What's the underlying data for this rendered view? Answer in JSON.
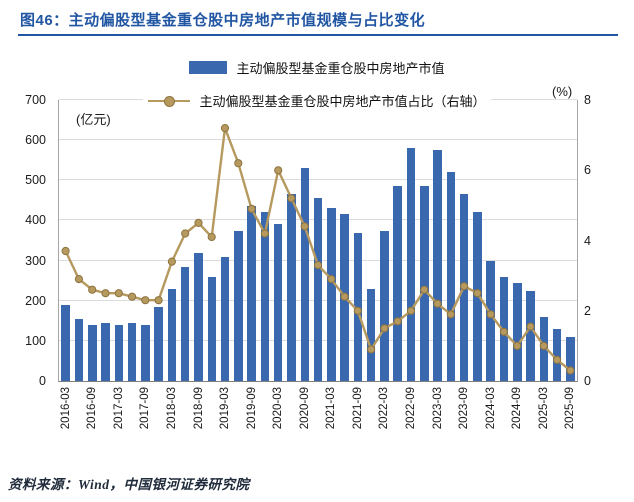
{
  "header": {
    "title": "图46：主动偏股型基金重仓股中房地产市值规模与占比变化",
    "accent_color": "#2156A3"
  },
  "legend": [
    {
      "label": "主动偏股型基金重仓股中房地产市值",
      "type": "bar",
      "color": "#3A68AE"
    },
    {
      "label": "主动偏股型基金重仓股中房地产市值占比（右轴）",
      "type": "line",
      "color": "#B5995E"
    }
  ],
  "chart_data": {
    "type": "bar+line",
    "categories": [
      "2016-03",
      "2016-06",
      "2016-09",
      "2016-12",
      "2017-03",
      "2017-06",
      "2017-09",
      "2017-12",
      "2018-03",
      "2018-06",
      "2018-09",
      "2018-12",
      "2019-03",
      "2019-06",
      "2019-09",
      "2019-12",
      "2020-03",
      "2020-06",
      "2020-09",
      "2020-12",
      "2021-03",
      "2021-06",
      "2021-09",
      "2021-12",
      "2022-03",
      "2022-06",
      "2022-09",
      "2022-12",
      "2023-03",
      "2023-06",
      "2023-09",
      "2023-12",
      "2024-03",
      "2024-06",
      "2024-09",
      "2024-12",
      "2025-03",
      "2025-06",
      "2025-09"
    ],
    "x_tick_step": 2,
    "series": [
      {
        "name": "主动偏股型基金重仓股中房地产市值",
        "type": "bar",
        "axis": "left",
        "unit": "亿元",
        "color": "#3A68AE",
        "values": [
          190,
          155,
          140,
          145,
          140,
          145,
          140,
          185,
          230,
          285,
          320,
          260,
          310,
          375,
          435,
          420,
          390,
          465,
          530,
          455,
          430,
          415,
          370,
          230,
          375,
          485,
          580,
          485,
          575,
          520,
          465,
          420,
          300,
          260,
          245,
          225,
          160,
          130,
          110
        ]
      },
      {
        "name": "主动偏股型基金重仓股中房地产市值占比（右轴）",
        "type": "line",
        "axis": "right",
        "unit": "%",
        "color": "#B5995E",
        "marker_edge_color": "#8d7340",
        "values": [
          3.7,
          2.9,
          2.6,
          2.5,
          2.5,
          2.4,
          2.3,
          2.3,
          3.4,
          4.2,
          4.5,
          4.1,
          7.2,
          6.2,
          4.9,
          4.2,
          6.0,
          5.2,
          4.4,
          3.3,
          2.9,
          2.4,
          2.0,
          0.9,
          1.5,
          1.7,
          2.0,
          2.6,
          2.2,
          1.9,
          2.7,
          2.5,
          1.9,
          1.4,
          1.0,
          1.55,
          1.0,
          0.6,
          0.3
        ]
      }
    ],
    "left_axis": {
      "label": "(亿元)",
      "min": 0,
      "max": 700,
      "ticks": [
        0,
        100,
        200,
        300,
        400,
        500,
        600,
        700
      ]
    },
    "right_axis": {
      "label": "(%)",
      "min": 0,
      "max": 8,
      "ticks": [
        0,
        2,
        4,
        6,
        8
      ]
    },
    "grid": true,
    "legend_position": "top"
  },
  "footer": {
    "source": "资料来源：Wind，中国银河证券研究院"
  }
}
